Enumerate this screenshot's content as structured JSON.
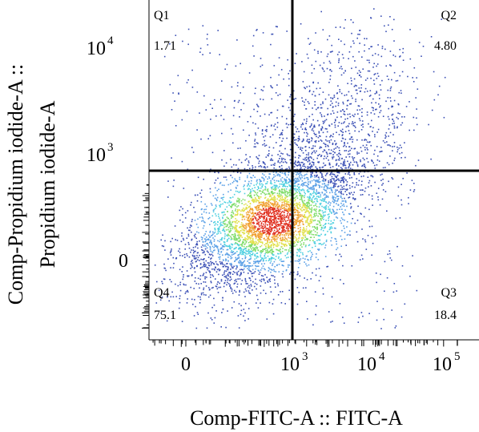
{
  "chart_data": {
    "type": "scatter",
    "subtype": "flow cytometry density dot plot with quadrant gate",
    "xlabel": "Comp-FITC-A :: FITC-A",
    "ylabel_lines": [
      "Comp-Propidium iodide-A ::",
      "Propidium iodide-A"
    ],
    "x_ticks": [
      {
        "label": "0",
        "value": 0
      },
      {
        "label": "10",
        "exp": "3",
        "value": 1000
      },
      {
        "label": "10",
        "exp": "4",
        "value": 10000
      },
      {
        "label": "10",
        "exp": "5",
        "value": 100000
      }
    ],
    "y_ticks": [
      {
        "label": "0",
        "value": 0
      },
      {
        "label": "10",
        "exp": "3",
        "value": 1000
      },
      {
        "label": "10",
        "exp": "4",
        "value": 10000
      }
    ],
    "axis_scale": "biexponential (logicle)",
    "quadrant_gate": {
      "x": 1000,
      "y": 600
    },
    "quadrants": [
      {
        "id": "Q1",
        "name": "Q1",
        "percent": "1.71",
        "position": "top-left"
      },
      {
        "id": "Q2",
        "name": "Q2",
        "percent": "4.80",
        "position": "top-right"
      },
      {
        "id": "Q3",
        "name": "Q3",
        "percent": "18.4",
        "position": "bottom-right"
      },
      {
        "id": "Q4",
        "name": "Q4",
        "percent": "75.1",
        "position": "bottom-left"
      }
    ],
    "density_colors": [
      "#3a4fb5",
      "#5aa0e6",
      "#4fd0e0",
      "#7fdc6a",
      "#e0e04a",
      "#f0a030",
      "#e03020"
    ],
    "grid": false,
    "legend": "none"
  }
}
